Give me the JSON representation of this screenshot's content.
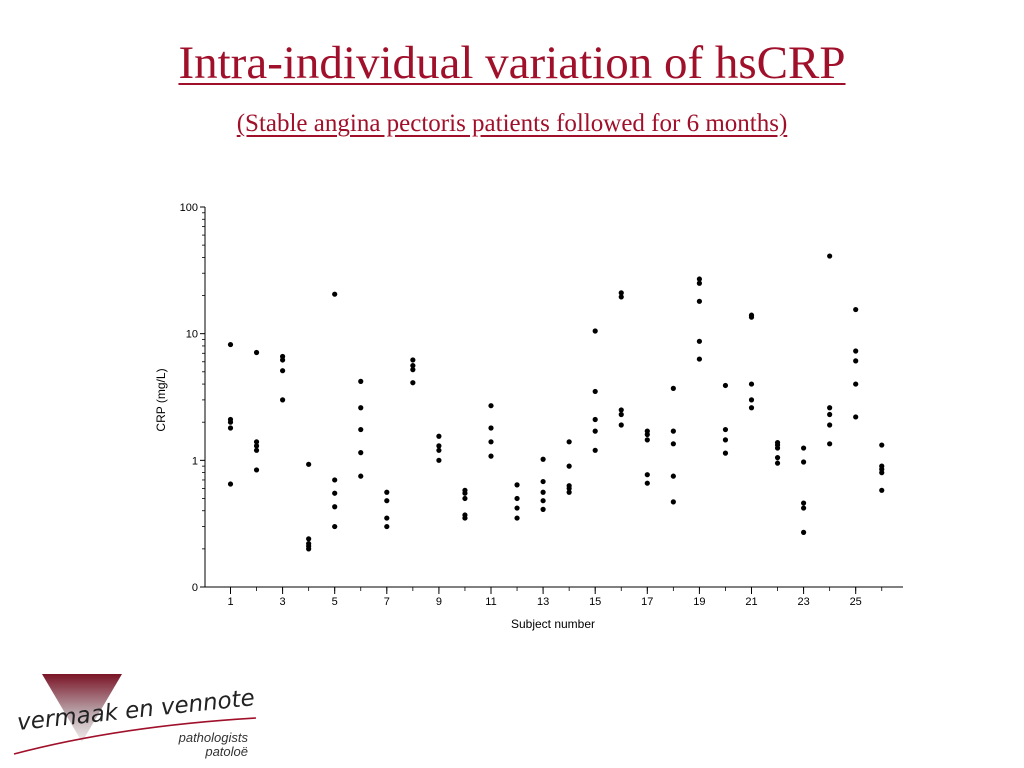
{
  "slide": {
    "title": "Intra-individual variation of hsCRP",
    "subtitle": "(Stable angina pectoris patients followed for 6 months)"
  },
  "logo": {
    "name": "vermaak en vennote",
    "line2": "pathologists",
    "line3": "patoloë",
    "colors": {
      "triangle": "#8a1a2c",
      "swoosh": "#a0102a"
    }
  },
  "chart_data": {
    "type": "scatter",
    "ylabel": "CRP (mg/L)",
    "xlabel": "Subject number",
    "y_scale": "log",
    "y_ticks": [
      {
        "value": 0.1,
        "label": "0"
      },
      {
        "value": 1,
        "label": "1"
      },
      {
        "value": 10,
        "label": "10"
      },
      {
        "value": 100,
        "label": "100"
      }
    ],
    "x_ticks": [
      1,
      3,
      5,
      7,
      9,
      11,
      13,
      15,
      17,
      19,
      21,
      23,
      25
    ],
    "x_range": [
      0,
      27
    ],
    "grid": false,
    "marker_color": "#000000",
    "points": [
      {
        "x": 1,
        "values": [
          8.2,
          2.1,
          2.0,
          1.8,
          0.65
        ]
      },
      {
        "x": 2,
        "values": [
          7.1,
          1.4,
          1.3,
          1.2,
          0.84
        ]
      },
      {
        "x": 3,
        "values": [
          6.6,
          6.2,
          5.1,
          3.0
        ]
      },
      {
        "x": 4,
        "values": [
          0.93,
          0.24,
          0.22,
          0.21,
          0.2
        ]
      },
      {
        "x": 5,
        "values": [
          20.5,
          0.7,
          0.55,
          0.43,
          0.3
        ]
      },
      {
        "x": 6,
        "values": [
          4.2,
          2.6,
          1.75,
          1.15,
          0.75
        ]
      },
      {
        "x": 7,
        "values": [
          0.56,
          0.48,
          0.35,
          0.3
        ]
      },
      {
        "x": 8,
        "values": [
          6.2,
          5.6,
          5.2,
          4.1
        ]
      },
      {
        "x": 9,
        "values": [
          1.55,
          1.3,
          1.2,
          1.0
        ]
      },
      {
        "x": 10,
        "values": [
          0.58,
          0.55,
          0.5,
          0.37,
          0.35
        ]
      },
      {
        "x": 11,
        "values": [
          2.7,
          1.8,
          1.4,
          1.08
        ]
      },
      {
        "x": 12,
        "values": [
          0.64,
          0.5,
          0.42,
          0.35
        ]
      },
      {
        "x": 13,
        "values": [
          1.02,
          0.68,
          0.56,
          0.48,
          0.41
        ]
      },
      {
        "x": 14,
        "values": [
          1.4,
          0.9,
          0.63,
          0.6,
          0.56
        ]
      },
      {
        "x": 15,
        "values": [
          10.5,
          3.5,
          2.1,
          1.7,
          1.2
        ]
      },
      {
        "x": 16,
        "values": [
          21.0,
          19.5,
          2.5,
          2.3,
          1.9
        ]
      },
      {
        "x": 17,
        "values": [
          1.7,
          1.6,
          1.45,
          0.77,
          0.66
        ]
      },
      {
        "x": 18,
        "values": [
          3.7,
          1.7,
          1.35,
          0.75,
          0.47
        ]
      },
      {
        "x": 19,
        "values": [
          27.0,
          25.0,
          18.0,
          8.7,
          6.3
        ]
      },
      {
        "x": 20,
        "values": [
          3.9,
          1.75,
          1.45,
          1.14
        ]
      },
      {
        "x": 21,
        "values": [
          14.0,
          13.5,
          4.0,
          3.0,
          2.6
        ]
      },
      {
        "x": 22,
        "values": [
          1.38,
          1.32,
          1.25,
          1.05,
          0.95
        ]
      },
      {
        "x": 23,
        "values": [
          1.25,
          0.97,
          0.46,
          0.42,
          0.27
        ]
      },
      {
        "x": 24,
        "values": [
          41.0,
          2.6,
          2.3,
          1.9,
          1.35
        ]
      },
      {
        "x": 25,
        "values": [
          15.5,
          7.3,
          6.1,
          4.0,
          2.2
        ]
      },
      {
        "x": 26,
        "values": [
          1.32,
          0.9,
          0.85,
          0.8,
          0.58
        ]
      }
    ]
  }
}
